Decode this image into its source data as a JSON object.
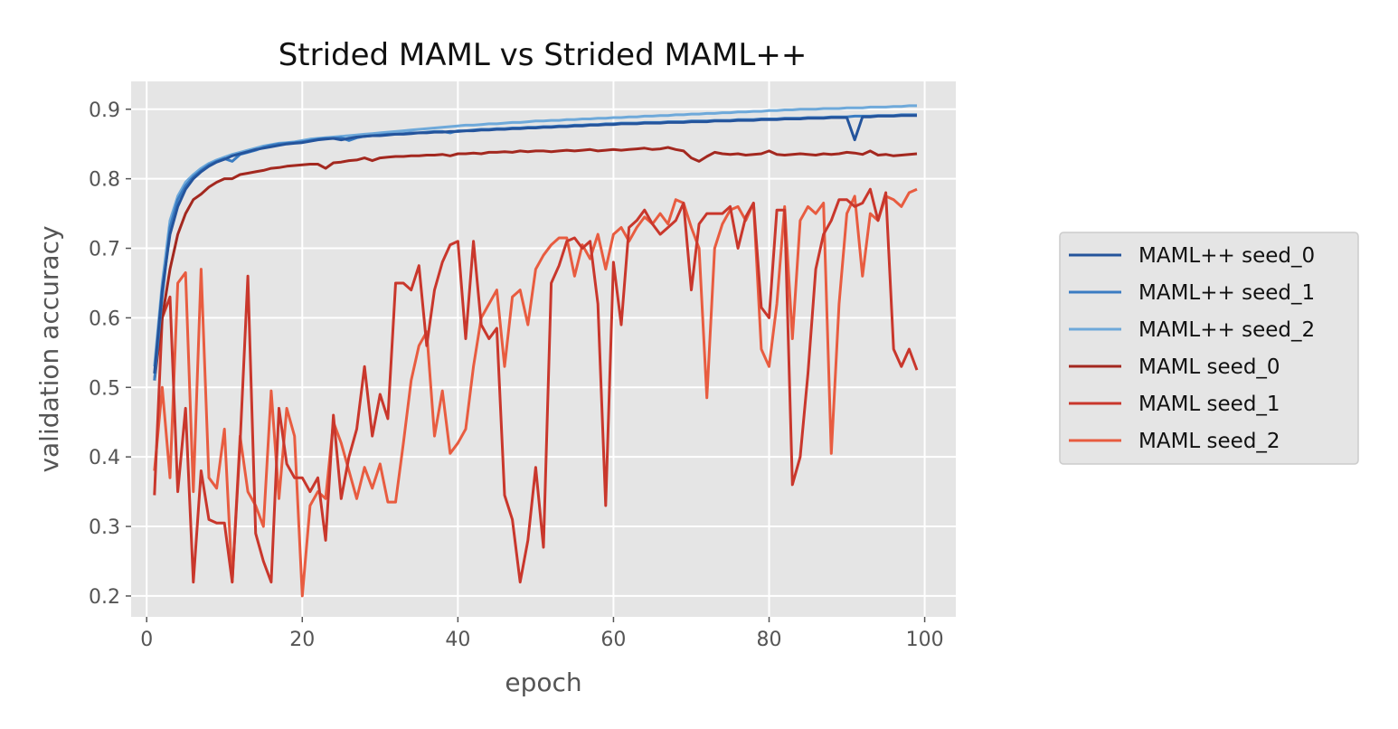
{
  "chart_data": {
    "type": "line",
    "title": "Strided MAML vs Strided MAML++",
    "xlabel": "epoch",
    "ylabel": "validation accuracy",
    "xlim": [
      -2,
      104
    ],
    "ylim": [
      0.17,
      0.94
    ],
    "xticks": [
      0,
      20,
      40,
      60,
      80,
      100
    ],
    "yticks": [
      0.2,
      0.3,
      0.4,
      0.5,
      0.6,
      0.7,
      0.8,
      0.9
    ],
    "grid": true,
    "legend_position": "right-outside",
    "x_start": 1,
    "series": [
      {
        "name": "MAML++ seed_0",
        "color": "#24549c",
        "values": [
          0.52,
          0.64,
          0.72,
          0.76,
          0.785,
          0.8,
          0.81,
          0.818,
          0.824,
          0.828,
          0.833,
          0.836,
          0.839,
          0.842,
          0.844,
          0.846,
          0.848,
          0.85,
          0.851,
          0.852,
          0.854,
          0.856,
          0.857,
          0.858,
          0.856,
          0.858,
          0.86,
          0.861,
          0.862,
          0.862,
          0.863,
          0.864,
          0.864,
          0.865,
          0.866,
          0.866,
          0.867,
          0.867,
          0.868,
          0.868,
          0.869,
          0.869,
          0.87,
          0.87,
          0.871,
          0.871,
          0.872,
          0.872,
          0.873,
          0.873,
          0.874,
          0.874,
          0.875,
          0.875,
          0.876,
          0.876,
          0.877,
          0.877,
          0.878,
          0.878,
          0.879,
          0.879,
          0.879,
          0.88,
          0.88,
          0.88,
          0.881,
          0.881,
          0.881,
          0.882,
          0.882,
          0.882,
          0.883,
          0.883,
          0.883,
          0.884,
          0.884,
          0.884,
          0.885,
          0.885,
          0.885,
          0.886,
          0.886,
          0.886,
          0.887,
          0.887,
          0.887,
          0.888,
          0.888,
          0.888,
          0.856,
          0.889,
          0.889,
          0.89,
          0.89,
          0.89,
          0.891,
          0.891,
          0.891
        ]
      },
      {
        "name": "MAML++ seed_1",
        "color": "#3a7cc2",
        "values": [
          0.51,
          0.63,
          0.73,
          0.77,
          0.79,
          0.803,
          0.812,
          0.82,
          0.825,
          0.829,
          0.825,
          0.835,
          0.838,
          0.841,
          0.845,
          0.848,
          0.85,
          0.851,
          0.852,
          0.853,
          0.855,
          0.857,
          0.858,
          0.858,
          0.859,
          0.855,
          0.859,
          0.861,
          0.862,
          0.863,
          0.864,
          0.864,
          0.865,
          0.866,
          0.866,
          0.867,
          0.868,
          0.868,
          0.866,
          0.869,
          0.869,
          0.87,
          0.871,
          0.871,
          0.872,
          0.872,
          0.873,
          0.873,
          0.874,
          0.874,
          0.875,
          0.875,
          0.876,
          0.876,
          0.877,
          0.877,
          0.878,
          0.878,
          0.879,
          0.879,
          0.88,
          0.88,
          0.88,
          0.881,
          0.881,
          0.881,
          0.882,
          0.882,
          0.882,
          0.883,
          0.883,
          0.883,
          0.884,
          0.884,
          0.884,
          0.885,
          0.885,
          0.885,
          0.886,
          0.886,
          0.886,
          0.887,
          0.887,
          0.887,
          0.888,
          0.888,
          0.888,
          0.889,
          0.889,
          0.889,
          0.89,
          0.89,
          0.89,
          0.891,
          0.891,
          0.891,
          0.892,
          0.892,
          0.892
        ]
      },
      {
        "name": "MAML++ seed_2",
        "color": "#6ea9da",
        "values": [
          0.53,
          0.65,
          0.74,
          0.775,
          0.795,
          0.806,
          0.815,
          0.822,
          0.827,
          0.831,
          0.835,
          0.838,
          0.841,
          0.844,
          0.847,
          0.849,
          0.851,
          0.852,
          0.853,
          0.855,
          0.857,
          0.858,
          0.859,
          0.86,
          0.861,
          0.862,
          0.863,
          0.864,
          0.865,
          0.866,
          0.867,
          0.868,
          0.869,
          0.87,
          0.871,
          0.872,
          0.873,
          0.874,
          0.875,
          0.876,
          0.877,
          0.877,
          0.878,
          0.879,
          0.879,
          0.88,
          0.881,
          0.881,
          0.882,
          0.883,
          0.883,
          0.884,
          0.884,
          0.885,
          0.885,
          0.886,
          0.886,
          0.887,
          0.887,
          0.888,
          0.888,
          0.889,
          0.889,
          0.89,
          0.89,
          0.891,
          0.891,
          0.892,
          0.892,
          0.893,
          0.893,
          0.894,
          0.894,
          0.895,
          0.895,
          0.896,
          0.896,
          0.897,
          0.897,
          0.898,
          0.898,
          0.899,
          0.899,
          0.9,
          0.9,
          0.9,
          0.901,
          0.901,
          0.901,
          0.902,
          0.902,
          0.902,
          0.903,
          0.903,
          0.903,
          0.904,
          0.904,
          0.905,
          0.905
        ]
      },
      {
        "name": "MAML seed_0",
        "color": "#a3281f",
        "values": [
          0.51,
          0.6,
          0.67,
          0.72,
          0.75,
          0.77,
          0.778,
          0.788,
          0.795,
          0.8,
          0.8,
          0.806,
          0.808,
          0.81,
          0.812,
          0.815,
          0.816,
          0.818,
          0.819,
          0.82,
          0.821,
          0.821,
          0.815,
          0.823,
          0.824,
          0.826,
          0.827,
          0.83,
          0.826,
          0.83,
          0.831,
          0.832,
          0.832,
          0.833,
          0.833,
          0.834,
          0.834,
          0.835,
          0.833,
          0.836,
          0.836,
          0.837,
          0.836,
          0.838,
          0.838,
          0.839,
          0.838,
          0.84,
          0.839,
          0.84,
          0.84,
          0.839,
          0.84,
          0.841,
          0.84,
          0.841,
          0.842,
          0.84,
          0.841,
          0.842,
          0.841,
          0.842,
          0.843,
          0.844,
          0.842,
          0.843,
          0.845,
          0.842,
          0.84,
          0.83,
          0.825,
          0.832,
          0.838,
          0.836,
          0.835,
          0.836,
          0.834,
          0.835,
          0.836,
          0.84,
          0.835,
          0.834,
          0.835,
          0.836,
          0.835,
          0.834,
          0.836,
          0.835,
          0.836,
          0.838,
          0.837,
          0.835,
          0.84,
          0.834,
          0.835,
          0.833,
          0.834,
          0.835,
          0.836
        ]
      },
      {
        "name": "MAML seed_1",
        "color": "#c9372c",
        "values": [
          0.345,
          0.6,
          0.63,
          0.35,
          0.47,
          0.22,
          0.38,
          0.31,
          0.305,
          0.305,
          0.22,
          0.42,
          0.66,
          0.29,
          0.25,
          0.22,
          0.47,
          0.39,
          0.37,
          0.37,
          0.35,
          0.37,
          0.28,
          0.46,
          0.34,
          0.4,
          0.44,
          0.53,
          0.43,
          0.49,
          0.455,
          0.65,
          0.65,
          0.64,
          0.675,
          0.56,
          0.64,
          0.68,
          0.705,
          0.71,
          0.57,
          0.71,
          0.59,
          0.57,
          0.585,
          0.345,
          0.31,
          0.22,
          0.28,
          0.385,
          0.27,
          0.65,
          0.675,
          0.71,
          0.715,
          0.7,
          0.71,
          0.62,
          0.33,
          0.68,
          0.59,
          0.73,
          0.74,
          0.755,
          0.735,
          0.72,
          0.73,
          0.74,
          0.765,
          0.64,
          0.735,
          0.75,
          0.75,
          0.75,
          0.76,
          0.7,
          0.745,
          0.765,
          0.615,
          0.6,
          0.755,
          0.755,
          0.36,
          0.4,
          0.52,
          0.67,
          0.72,
          0.74,
          0.77,
          0.77,
          0.76,
          0.765,
          0.785,
          0.74,
          0.78,
          0.555,
          0.53,
          0.555,
          0.525
        ]
      },
      {
        "name": "MAML seed_2",
        "color": "#e85c40",
        "values": [
          0.38,
          0.5,
          0.37,
          0.65,
          0.665,
          0.35,
          0.67,
          0.37,
          0.355,
          0.44,
          0.22,
          0.43,
          0.35,
          0.33,
          0.3,
          0.495,
          0.34,
          0.47,
          0.43,
          0.2,
          0.33,
          0.35,
          0.34,
          0.45,
          0.42,
          0.38,
          0.34,
          0.385,
          0.355,
          0.39,
          0.335,
          0.335,
          0.42,
          0.51,
          0.56,
          0.58,
          0.43,
          0.495,
          0.405,
          0.42,
          0.44,
          0.53,
          0.6,
          0.62,
          0.64,
          0.53,
          0.63,
          0.64,
          0.59,
          0.67,
          0.69,
          0.705,
          0.715,
          0.715,
          0.66,
          0.705,
          0.685,
          0.72,
          0.67,
          0.72,
          0.73,
          0.71,
          0.73,
          0.745,
          0.735,
          0.75,
          0.735,
          0.77,
          0.765,
          0.73,
          0.7,
          0.485,
          0.7,
          0.735,
          0.755,
          0.76,
          0.74,
          0.765,
          0.555,
          0.53,
          0.62,
          0.76,
          0.57,
          0.74,
          0.76,
          0.75,
          0.765,
          0.405,
          0.62,
          0.75,
          0.775,
          0.66,
          0.75,
          0.74,
          0.775,
          0.77,
          0.76,
          0.78,
          0.785
        ]
      }
    ]
  }
}
